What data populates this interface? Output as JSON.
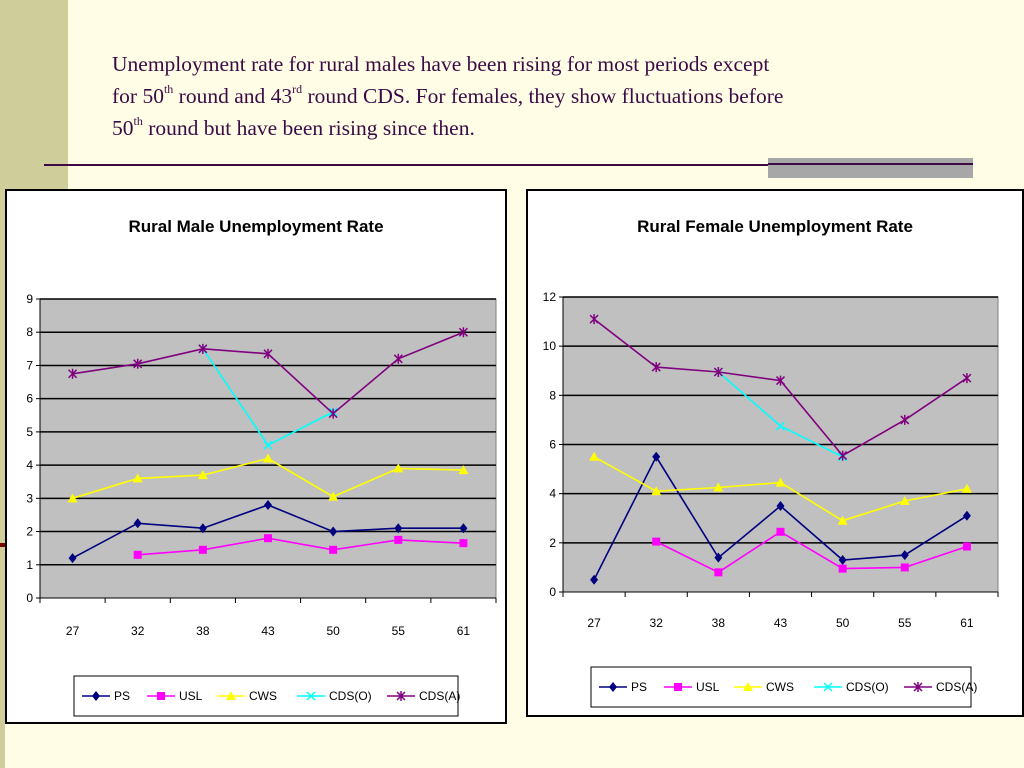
{
  "slide": {
    "line1": "Unemployment rate for rural males have been rising for most periods except",
    "line2_a": "for 50",
    "line2_sup1": "th",
    "line2_b": " round and 43",
    "line2_sup2": "rd",
    "line2_c": " round CDS. For females, they show fluctuations before",
    "line3_a": "50",
    "line3_sup": "th",
    "line3_b": " round but have been rising since then."
  },
  "colors": {
    "background": "#fffde5",
    "accent_band": "#cfcd99",
    "text": "#3b0a45",
    "plot_area": "#c0c0c0"
  },
  "chart_data": [
    {
      "type": "line",
      "title": "Rural Male Unemployment Rate",
      "categories": [
        "27",
        "32",
        "38",
        "43",
        "50",
        "55",
        "61"
      ],
      "ylim": [
        0,
        9
      ],
      "yticks": [
        "0",
        "1",
        "2",
        "3",
        "4",
        "5",
        "6",
        "7",
        "8",
        "9"
      ],
      "grid": true,
      "legend_position": "bottom",
      "series": [
        {
          "name": "PS",
          "color": "#000080",
          "marker": "diamond",
          "values": [
            1.2,
            2.25,
            2.1,
            2.8,
            2.0,
            2.1,
            2.1
          ]
        },
        {
          "name": "USL",
          "color": "#ff00ff",
          "marker": "square",
          "values": [
            null,
            1.3,
            1.45,
            1.8,
            1.45,
            1.75,
            1.65
          ]
        },
        {
          "name": "CWS",
          "color": "#ffff00",
          "marker": "triangle",
          "values": [
            3.0,
            3.6,
            3.7,
            4.2,
            3.05,
            3.9,
            3.85
          ]
        },
        {
          "name": "CDS(O)",
          "color": "#00ffff",
          "marker": "x",
          "values": [
            null,
            null,
            7.5,
            4.6,
            5.6,
            null,
            null
          ]
        },
        {
          "name": "CDS(A)",
          "color": "#800080",
          "marker": "star",
          "values": [
            6.75,
            7.05,
            7.5,
            7.35,
            5.55,
            7.2,
            8.0
          ]
        }
      ]
    },
    {
      "type": "line",
      "title": "Rural Female Unemployment Rate",
      "categories": [
        "27",
        "32",
        "38",
        "43",
        "50",
        "55",
        "61"
      ],
      "ylim": [
        0,
        12
      ],
      "yticks": [
        "0",
        "2",
        "4",
        "6",
        "8",
        "10",
        "12"
      ],
      "grid": true,
      "legend_position": "bottom",
      "series": [
        {
          "name": "PS",
          "color": "#000080",
          "marker": "diamond",
          "values": [
            0.5,
            5.5,
            1.4,
            3.5,
            1.3,
            1.5,
            3.1
          ]
        },
        {
          "name": "USL",
          "color": "#ff00ff",
          "marker": "square",
          "values": [
            null,
            2.05,
            0.8,
            2.45,
            0.95,
            1.0,
            1.85
          ]
        },
        {
          "name": "CWS",
          "color": "#ffff00",
          "marker": "triangle",
          "values": [
            5.5,
            4.1,
            4.25,
            4.45,
            2.9,
            3.7,
            4.2
          ]
        },
        {
          "name": "CDS(O)",
          "color": "#00ffff",
          "marker": "x",
          "values": [
            null,
            null,
            8.95,
            6.75,
            5.5,
            null,
            null
          ]
        },
        {
          "name": "CDS(A)",
          "color": "#800080",
          "marker": "star",
          "values": [
            11.1,
            9.15,
            8.95,
            8.6,
            5.55,
            7.0,
            8.7
          ]
        }
      ]
    }
  ]
}
